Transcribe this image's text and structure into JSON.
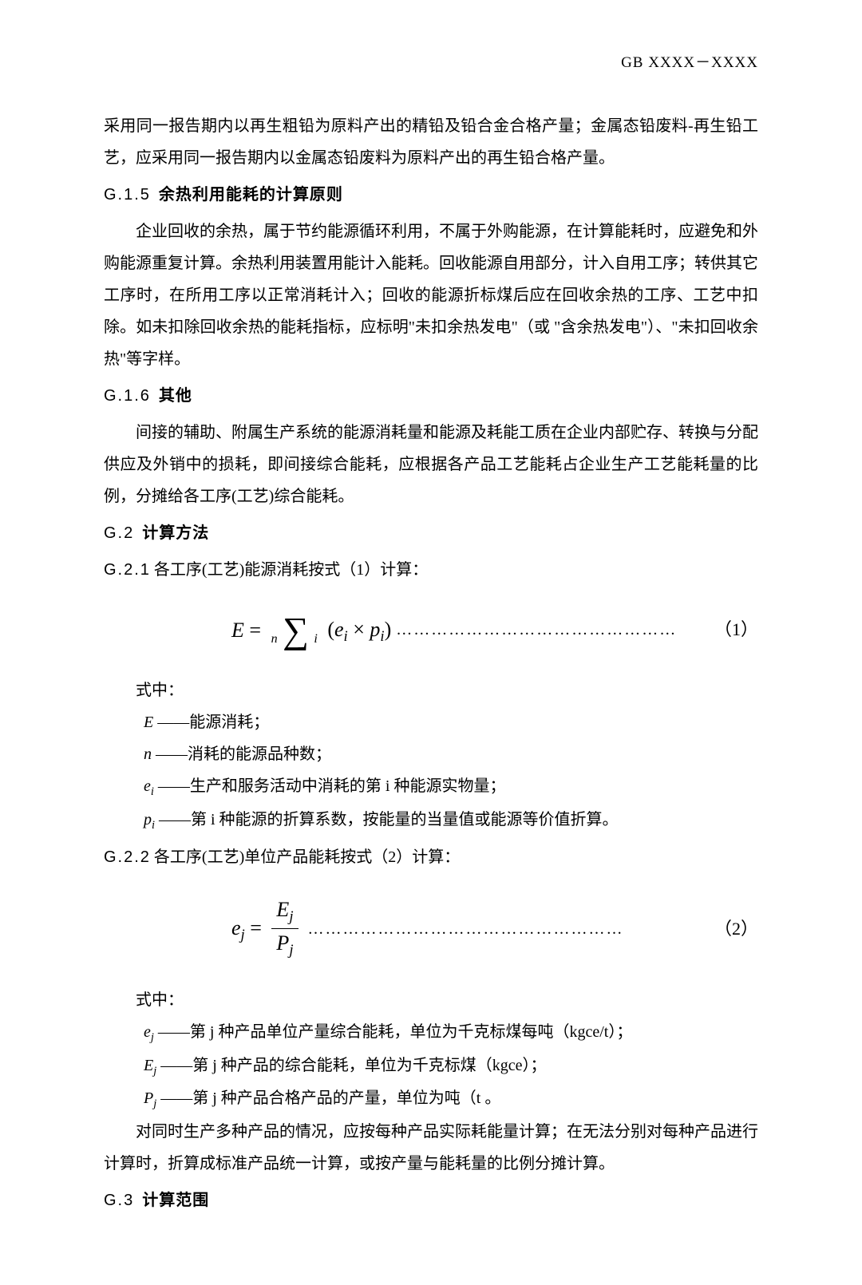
{
  "header": {
    "code": "GB XXXX－XXXX"
  },
  "intro": {
    "p1": "采用同一报告期内以再生粗铅为原料产出的精铅及铅合金合格产量；金属态铅废料-再生铅工艺，应采用同一报告期内以金属态铅废料为原料产出的再生铅合格产量。"
  },
  "g15": {
    "num": "G.1.5",
    "title": "余热利用能耗的计算原则",
    "p1": "企业回收的余热，属于节约能源循环利用，不属于外购能源，在计算能耗时，应避免和外购能源重复计算。余热利用装置用能计入能耗。回收能源自用部分，计入自用工序；转供其它工序时，在所用工序以正常消耗计入；回收的能源折标煤后应在回收余热的工序、工艺中扣除。如未扣除回收余热的能耗指标，应标明\"未扣余热发电\"（或 \"含余热发电\"）、\"未扣回收余热\"等字样。"
  },
  "g16": {
    "num": "G.1.6",
    "title": "其他",
    "p1": "间接的辅助、附属生产系统的能源消耗量和能源及耗能工质在企业内部贮存、转换与分配供应及外销中的损耗，即间接综合能耗，应根据各产品工艺能耗占企业生产工艺能耗量的比例，分摊给各工序(工艺)综合能耗。"
  },
  "g2": {
    "num": "G.2",
    "title": "计算方法"
  },
  "g21": {
    "num": "G.2.1",
    "title": "各工序(工艺)能源消耗按式（1）计算："
  },
  "formula1": {
    "lhs_sym": "E",
    "limit_top": "n",
    "limit_bot": "i",
    "body_e": "e",
    "body_p": "p",
    "body_sub": "i",
    "eqnum": "（1）",
    "dots": "…………………………………………"
  },
  "where_label": "式中：",
  "defs1": {
    "d1_sym": "E",
    "d1_txt": "——能源消耗；",
    "d2_sym": "n",
    "d2_txt": "——消耗的能源品种数；",
    "d3_sym": "e",
    "d3_sub": "i",
    "d3_txt": "——生产和服务活动中消耗的第 i 种能源实物量；",
    "d4_sym": "p",
    "d4_sub": "i",
    "d4_txt": "——第 i 种能源的折算系数，按能量的当量值或能源等价值折算。"
  },
  "g22": {
    "num": "G.2.2",
    "title": "各工序(工艺)单位产品能耗按式（2）计算："
  },
  "formula2": {
    "lhs_sym": "e",
    "lhs_sub": "j",
    "num_sym": "E",
    "num_sub": "j",
    "den_sym": "P",
    "den_sub": "j",
    "eqnum": "（2）",
    "dots": "………………………………………………"
  },
  "defs2": {
    "d1_sym": "e",
    "d1_sub": "j",
    "d1_txt": "——第 j 种产品单位产量综合能耗，单位为千克标煤每吨（kgce/t）；",
    "d2_sym": "E",
    "d2_sub": "j",
    "d2_txt": "——第 j 种产品的综合能耗，单位为千克标煤（kgce）；",
    "d3_sym": "P",
    "d3_sub": "j",
    "d3_txt": "——第 j 种产品合格产品的产量，单位为吨（t 。"
  },
  "tail": {
    "p1": "对同时生产多种产品的情况，应按每种产品实际耗能量计算；在无法分别对每种产品进行计算时，折算成标准产品统一计算，或按产量与能耗量的比例分摊计算。"
  },
  "g3": {
    "num": "G.3",
    "title": "计算范围"
  }
}
